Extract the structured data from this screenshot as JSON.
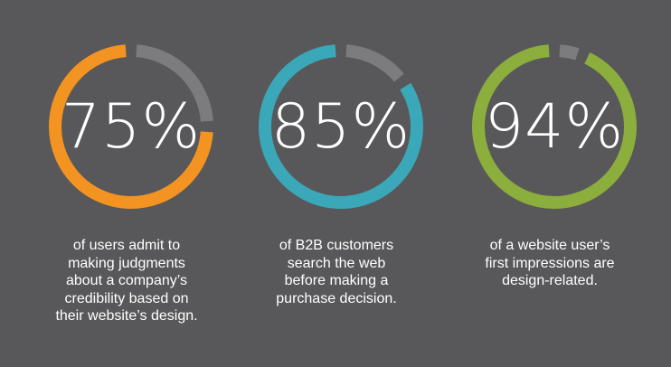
{
  "colors": {
    "background": "#58585a",
    "track": "#7c7c7e",
    "text": "#ffffff"
  },
  "stats": [
    {
      "percent_label": "75%",
      "value": 75,
      "color": "#f39422",
      "description_lines": [
        "of users admit to",
        "making judgments",
        "about a company’s",
        "credibility based on",
        "their website’s design."
      ]
    },
    {
      "percent_label": "85%",
      "value": 85,
      "color": "#3aa8b9",
      "description_lines": [
        "of B2B customers",
        "search the web",
        "before making a",
        "purchase decision."
      ]
    },
    {
      "percent_label": "94%",
      "value": 94,
      "color": "#8cae3c",
      "description_lines": [
        "of a website user’s",
        "first impressions are",
        "design-related."
      ]
    }
  ]
}
